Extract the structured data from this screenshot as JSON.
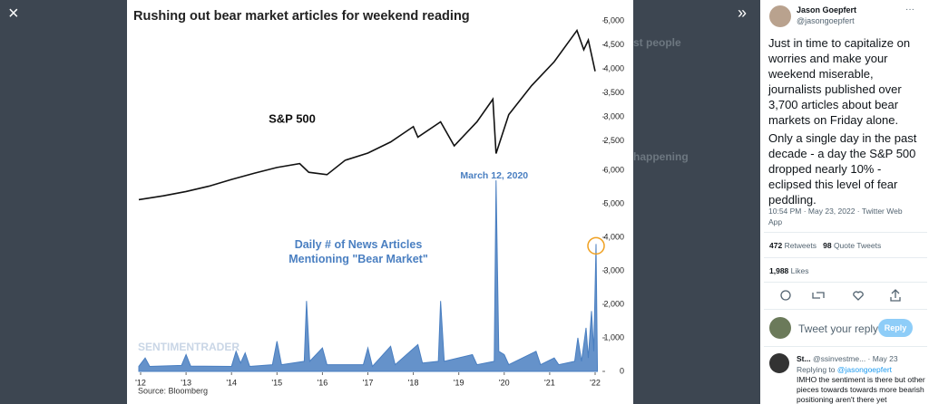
{
  "overlay": {
    "close": "×",
    "expand": "»",
    "background_texts": [
      "st people",
      "happening"
    ]
  },
  "chart_data": {
    "type": "line",
    "title": "Rushing out bear market articles for weekend reading",
    "annotations": [
      "March 12, 2020"
    ],
    "source": "Source: Bloomberg",
    "watermark": "SENTIMENTRADER",
    "xlim": [
      2011.96,
      2022.08
    ],
    "xticks": [
      {
        "value": 2012,
        "label": "'12"
      },
      {
        "value": 2013,
        "label": "'13"
      },
      {
        "value": 2014,
        "label": "'14"
      },
      {
        "value": 2015,
        "label": "'15"
      },
      {
        "value": 2016,
        "label": "'16"
      },
      {
        "value": 2017,
        "label": "'17"
      },
      {
        "value": 2018,
        "label": "'18"
      },
      {
        "value": 2019,
        "label": "'19"
      },
      {
        "value": 2020,
        "label": "'20"
      },
      {
        "value": 2021,
        "label": "'21"
      },
      {
        "value": 2022,
        "label": "'22"
      }
    ],
    "ylim": [
      1100,
      5000
    ],
    "yticks": [
      {
        "value": 2500,
        "label": "2,500"
      },
      {
        "value": 3000,
        "label": "3,000"
      },
      {
        "value": 3500,
        "label": "3,500"
      },
      {
        "value": 4000,
        "label": "4,000"
      },
      {
        "value": 4500,
        "label": "4,500"
      },
      {
        "value": 5000,
        "label": "5,000"
      }
    ],
    "y2lim": [
      0,
      6000
    ],
    "y2ticks": [
      0,
      {
        "value": 1000,
        "label": "1,000"
      },
      {
        "value": 2000,
        "label": "2,000"
      },
      {
        "value": 3000,
        "label": "3,000"
      },
      {
        "value": 4000,
        "label": "4,000"
      },
      {
        "value": 5000,
        "label": "5,000"
      },
      {
        "value": 6000,
        "label": "6,000"
      }
    ],
    "series": [
      {
        "name": "S&P 500",
        "color": "#111111",
        "x": [
          2011.96,
          2012.5,
          2013,
          2013.5,
          2014,
          2014.5,
          2015,
          2015.5,
          2015.7,
          2016.1,
          2016.5,
          2017,
          2017.5,
          2018,
          2018.1,
          2018.6,
          2018.9,
          2019.4,
          2019.75,
          2019.82,
          2020.1,
          2020.6,
          2021.1,
          2021.6,
          2021.75,
          2021.85,
          2022.0
        ],
        "values": [
          1280,
          1360,
          1450,
          1560,
          1700,
          1830,
          1950,
          2030,
          1850,
          1800,
          2100,
          2250,
          2480,
          2800,
          2580,
          2900,
          2400,
          2900,
          3370,
          2240,
          3050,
          3650,
          4150,
          4800,
          4400,
          4600,
          3950
        ]
      },
      {
        "name": "Daily # of News Articles Mentioning \"Bear Market\"",
        "color": "#4a7fc1",
        "axis": "y2",
        "x": [
          2011.96,
          2012.1,
          2012.2,
          2012.9,
          2013.0,
          2013.1,
          2014.0,
          2014.1,
          2014.2,
          2014.3,
          2014.4,
          2014.9,
          2015.0,
          2015.1,
          2015.6,
          2015.65,
          2015.72,
          2016.0,
          2016.1,
          2016.9,
          2017.0,
          2017.1,
          2017.5,
          2017.6,
          2018.1,
          2018.2,
          2018.55,
          2018.6,
          2018.68,
          2019.3,
          2019.4,
          2019.78,
          2019.82,
          2019.88,
          2020.0,
          2020.1,
          2020.7,
          2020.8,
          2021.1,
          2021.2,
          2021.55,
          2021.62,
          2021.7,
          2021.8,
          2021.85,
          2021.92,
          2021.97,
          2022.02,
          2022.05
        ],
        "values": [
          150,
          400,
          150,
          180,
          500,
          160,
          150,
          600,
          250,
          550,
          150,
          200,
          900,
          200,
          300,
          2100,
          300,
          700,
          200,
          200,
          700,
          150,
          750,
          200,
          800,
          250,
          300,
          2100,
          300,
          500,
          200,
          300,
          5700,
          600,
          500,
          200,
          600,
          200,
          400,
          200,
          300,
          1000,
          300,
          1300,
          400,
          1800,
          600,
          3800,
          150
        ]
      }
    ]
  },
  "tweet": {
    "name": "Jason Goepfert",
    "handle": "@jasongoepfert",
    "more": "···",
    "paragraphs": [
      "Just in time to capitalize on worries and make your weekend miserable, journalists published over 3,700 articles about bear markets on Friday alone.",
      "Only a single day in the past decade - a day the S&P 500 dropped nearly 10% - eclipsed this level of fear peddling."
    ],
    "timestamp": "10:54 PM · May 23, 2022 · Twitter Web App",
    "retweets": "472",
    "retweets_label": "Retweets",
    "quotes": "98",
    "quotes_label": "Quote Tweets",
    "likes": "1,988",
    "likes_label": "Likes",
    "reply_placeholder": "Tweet your reply",
    "reply_button": "Reply",
    "reply": {
      "name": "St...",
      "meta": "@ssinvestme... · May 23",
      "replying": "Replying to",
      "replying_to": "@jasongoepfert",
      "text": "IMHO the sentiment is there but other pieces towards towards more bearish positioning aren't there yet"
    }
  }
}
